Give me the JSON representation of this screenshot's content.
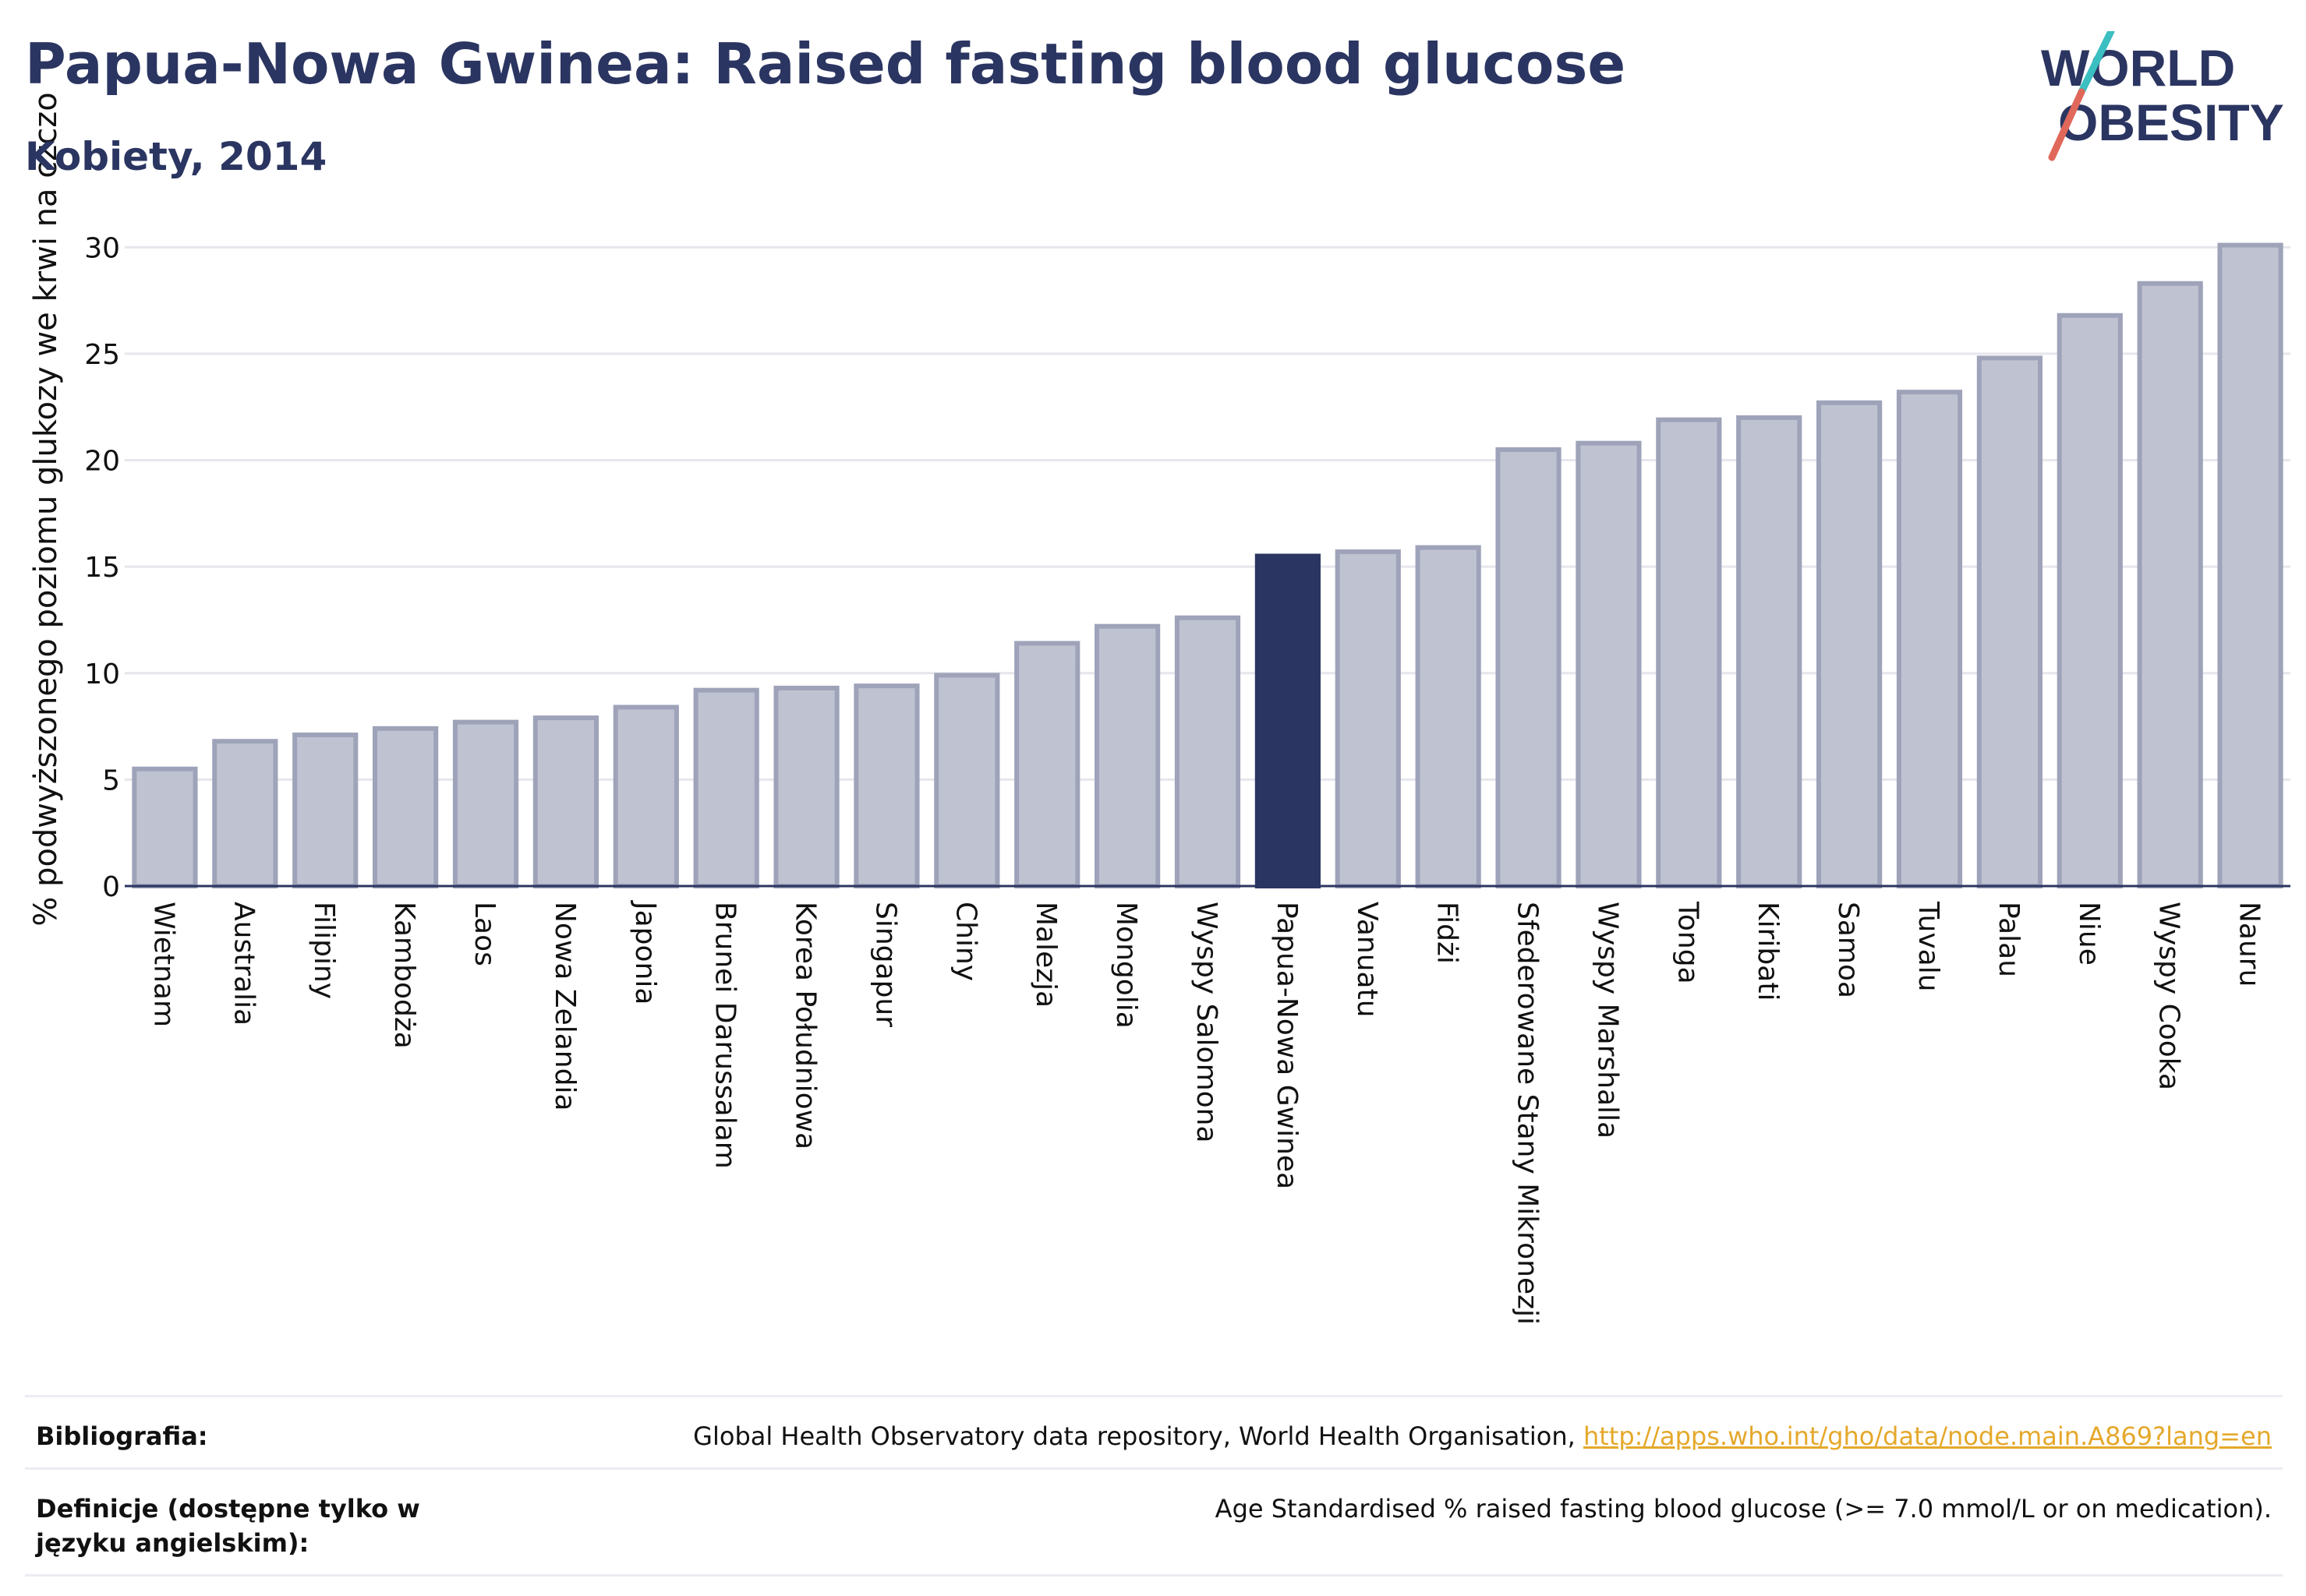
{
  "header": {
    "title": "Papua-Nowa Gwinea: Raised fasting blood glucose",
    "subtitle": "Kobiety, 2014"
  },
  "logo": {
    "line1": "WORLD",
    "line2": "OBESITY",
    "colors": {
      "text": "#2b3561",
      "slash_teal": "#3bbfc1",
      "slash_red": "#e0685a"
    }
  },
  "colors": {
    "bar": "#bfc3d1",
    "bar_stroke": "#9ea3b9",
    "highlight": "#2b3561",
    "grid": "#e6e6ec",
    "axis": "#2b3561",
    "link": "#e5a82b"
  },
  "chart_data": {
    "type": "bar",
    "ylabel": "% podwyższonego poziomu glukozy we krwi na czczo",
    "ylim": [
      0,
      31
    ],
    "yticks": [
      0,
      5,
      10,
      15,
      20,
      25,
      30
    ],
    "grid": true,
    "highlight": "Papua-Nowa Gwinea",
    "categories": [
      "Wietnam",
      "Australia",
      "Filipiny",
      "Kambodża",
      "Laos",
      "Nowa Zelandia",
      "Japonia",
      "Brunei Darussalam",
      "Korea Południowa",
      "Singapur",
      "Chiny",
      "Malezja",
      "Mongolia",
      "Wyspy Salomona",
      "Papua-Nowa Gwinea",
      "Vanuatu",
      "Fidżi",
      "Sfederowane Stany Mikronezji",
      "Wyspy Marshalla",
      "Tonga",
      "Kiribati",
      "Samoa",
      "Tuvalu",
      "Palau",
      "Niue",
      "Wyspy Cooka",
      "Nauru"
    ],
    "values": [
      5.5,
      6.8,
      7.1,
      7.4,
      7.7,
      7.9,
      8.4,
      9.2,
      9.3,
      9.4,
      9.9,
      11.4,
      12.2,
      12.6,
      15.5,
      15.7,
      15.9,
      20.5,
      20.8,
      21.9,
      22.0,
      22.7,
      23.2,
      24.8,
      26.8,
      28.3,
      30.1
    ]
  },
  "footer": {
    "bibliography_label": "Bibliografia:",
    "bibliography_text": "Global Health Observatory data repository, World Health Organisation, ",
    "bibliography_link": "http://apps.who.int/gho/data/node.main.A869?lang=en",
    "definitions_label": "Definicje (dostępne tylko w języku angielskim):",
    "definitions_text": "Age Standardised % raised fasting blood glucose (>= 7.0 mmol/L or on medication)."
  }
}
